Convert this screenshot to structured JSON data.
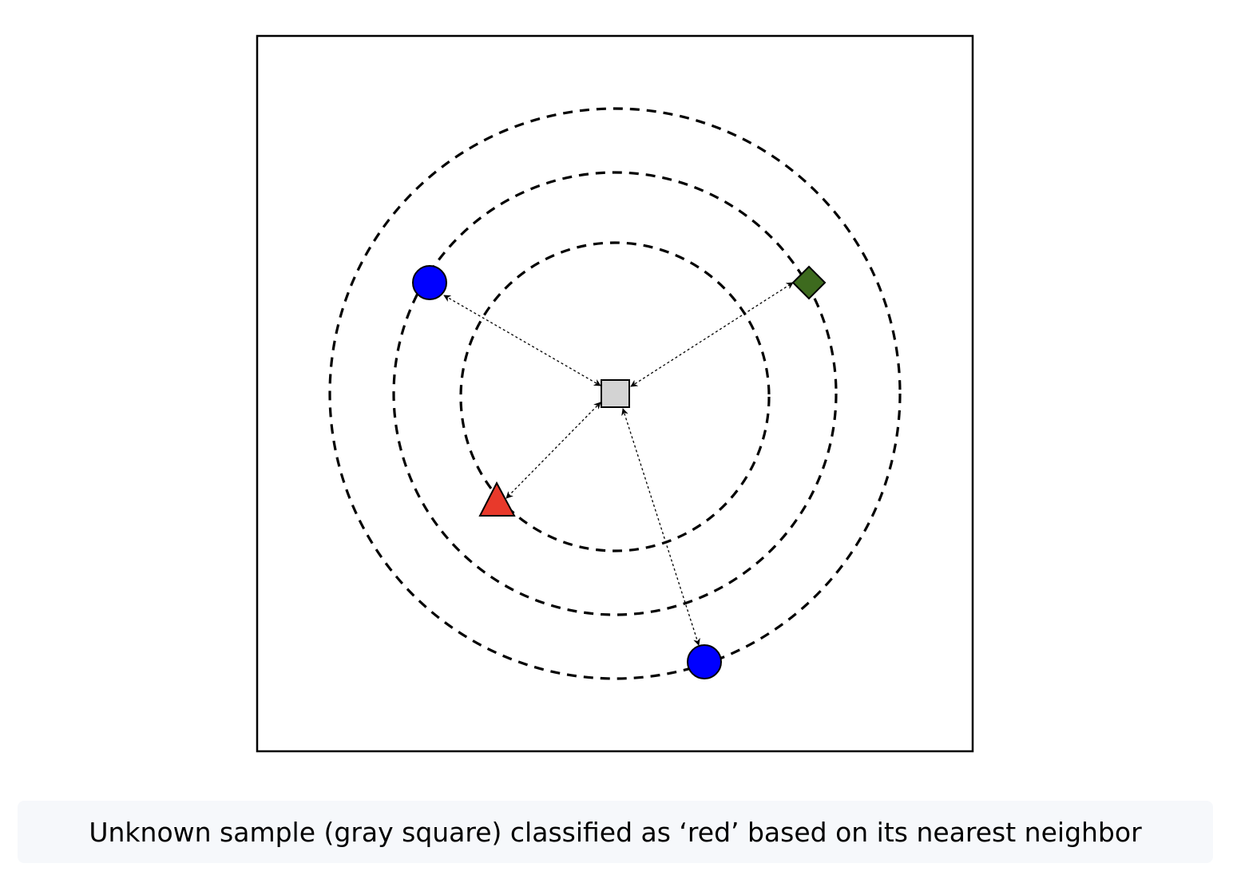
{
  "caption": "Unknown sample (gray square) classified as ‘red’ based on its nearest neighbor",
  "diagram": {
    "unknown_sample": {
      "shape": "square",
      "color": "#d3d3d3"
    },
    "neighbors": [
      {
        "id": "red-triangle",
        "shape": "triangle",
        "color": "#e8392b"
      },
      {
        "id": "blue-circle-upper-left",
        "shape": "circle",
        "color": "#0000ff"
      },
      {
        "id": "green-diamond",
        "shape": "diamond",
        "color": "#3d6a1e"
      },
      {
        "id": "blue-circle-bottom",
        "shape": "circle",
        "color": "#0000ff"
      }
    ],
    "distance_rings": 3
  },
  "colors": {
    "stroke": "#000000",
    "caption_bg": "#f6f8fb",
    "frame": "#000000"
  }
}
